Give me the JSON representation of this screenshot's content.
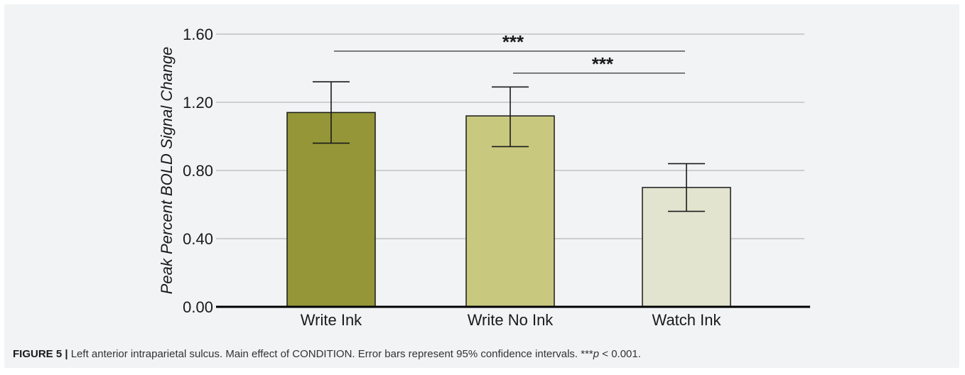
{
  "caption": {
    "label": "FIGURE 5 |",
    "text": " Left anterior intraparietal sulcus. Main effect of CONDITION. Error bars represent 95% confidence intervals. ***",
    "p_symbol": "p",
    "p_rest": " < 0.001."
  },
  "chart_data": {
    "type": "bar",
    "ylabel": "Peak Percent BOLD Signal Change",
    "xlabel": "",
    "ylim": [
      0,
      1.6
    ],
    "yticks": [
      "0.00",
      "0.40",
      "0.80",
      "1.20",
      "1.60"
    ],
    "grid": true,
    "categories": [
      "Write Ink",
      "Write No Ink",
      "Watch Ink"
    ],
    "values": [
      1.14,
      1.12,
      0.7
    ],
    "error_low": [
      0.96,
      0.94,
      0.56
    ],
    "error_high": [
      1.32,
      1.29,
      0.84
    ],
    "colors": [
      "#959637",
      "#c8c97f",
      "#e3e4cf"
    ],
    "significance": [
      {
        "from": "Write Ink",
        "to": "Watch Ink",
        "label": "***"
      },
      {
        "from": "Write No Ink",
        "to": "Watch Ink",
        "label": "***"
      }
    ]
  }
}
